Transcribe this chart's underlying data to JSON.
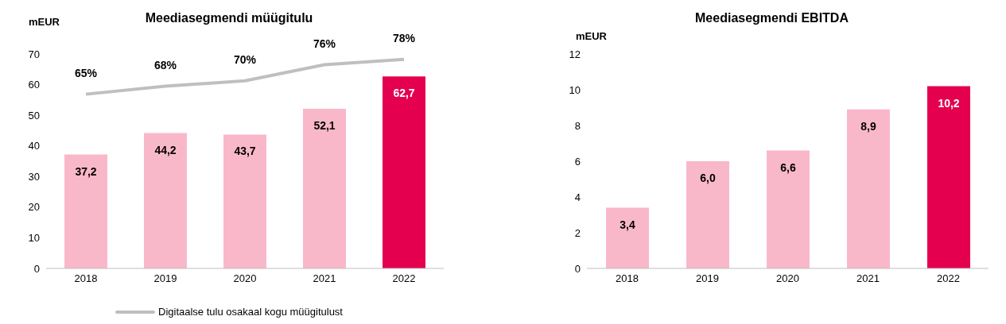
{
  "chart_data": [
    {
      "type": "bar",
      "title": "Meediasegmendi müügitulu",
      "ylabel": "mEUR",
      "categories": [
        "2018",
        "2019",
        "2020",
        "2021",
        "2022"
      ],
      "series": [
        {
          "values": [
            37.2,
            44.2,
            43.7,
            52.1,
            62.7
          ],
          "colors": [
            "#f9b8ca",
            "#f9b8ca",
            "#f9b8ca",
            "#f9b8ca",
            "#e4004f"
          ],
          "value_labels": [
            "37,2",
            "44,2",
            "43,7",
            "52,1",
            "62,7"
          ]
        },
        {
          "type": "line",
          "name": "Digitaalse tulu osakaal kogu müügitulust",
          "color": "#bfbfbf",
          "axis": "y2",
          "values": [
            65,
            68,
            70,
            76,
            78
          ],
          "value_labels": [
            "65%",
            "68%",
            "70%",
            "76%",
            "78%"
          ]
        }
      ],
      "ylim": [
        0,
        70
      ],
      "yticks": [
        0,
        10,
        20,
        30,
        40,
        50,
        60,
        70
      ],
      "grid": false,
      "legend": "bottom",
      "marker": "none"
    },
    {
      "type": "bar",
      "title": "Meediasegmendi EBITDA",
      "ylabel": "mEUR",
      "categories": [
        "2018",
        "2019",
        "2020",
        "2021",
        "2022"
      ],
      "series": [
        {
          "values": [
            3.4,
            6.0,
            6.6,
            8.9,
            10.2
          ],
          "colors": [
            "#f9b8ca",
            "#f9b8ca",
            "#f9b8ca",
            "#f9b8ca",
            "#e4004f"
          ],
          "value_labels": [
            "3,4",
            "6,0",
            "6,6",
            "8,9",
            "10,2"
          ]
        }
      ],
      "ylim": [
        0,
        12
      ],
      "yticks": [
        0,
        2,
        4,
        6,
        8,
        10,
        12
      ],
      "grid": false,
      "legend": false
    }
  ]
}
